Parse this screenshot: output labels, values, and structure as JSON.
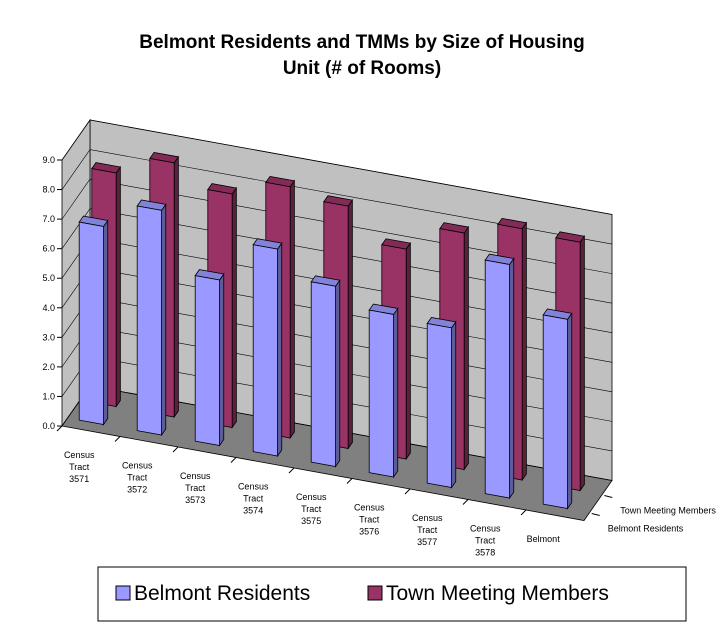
{
  "chart_data": {
    "type": "bar3d",
    "title": "Belmont Residents and TMMs by Size of Housing Unit (# of Rooms)",
    "categories": [
      "Census Tract 3571",
      "Census Tract 3572",
      "Census Tract 3573",
      "Census Tract 3574",
      "Census Tract 3575",
      "Census Tract 3576",
      "Census Tract 3577",
      "Census Tract 3578",
      "Belmont"
    ],
    "series": [
      {
        "name": "Belmont Residents",
        "color": "#9999ff",
        "values": [
          6.7,
          7.6,
          5.6,
          7.0,
          6.1,
          5.5,
          5.4,
          7.9,
          6.4
        ]
      },
      {
        "name": "Town Meeting Members",
        "color": "#993366",
        "values": [
          7.9,
          8.6,
          7.9,
          8.5,
          8.2,
          7.1,
          8.0,
          8.5,
          8.4
        ]
      }
    ],
    "ylim": [
      0,
      9
    ],
    "yticks": [
      {
        "value": 0,
        "label": "0.0"
      },
      {
        "value": 1,
        "label": "1.0"
      },
      {
        "value": 2,
        "label": "2.0"
      },
      {
        "value": 3,
        "label": "3.0"
      },
      {
        "value": 4,
        "label": "4.0"
      },
      {
        "value": 5,
        "label": "5.0"
      },
      {
        "value": 6,
        "label": "6.0"
      },
      {
        "value": 7,
        "label": "7.0"
      },
      {
        "value": 8,
        "label": "8.0"
      },
      {
        "value": 9,
        "label": "9.0"
      }
    ],
    "grid": true,
    "legend": "bottom"
  }
}
